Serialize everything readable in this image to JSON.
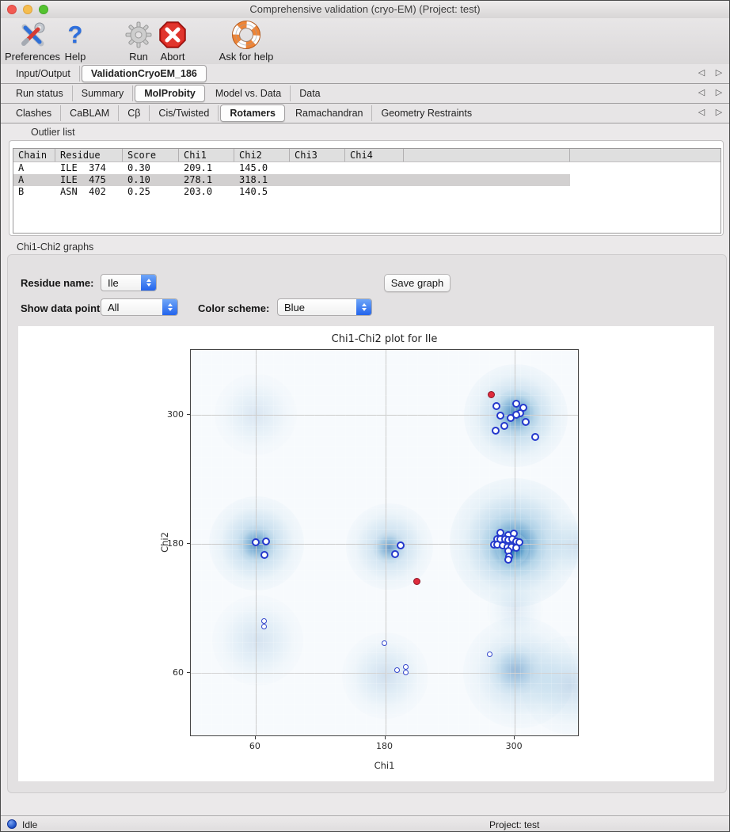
{
  "window": {
    "title": "Comprehensive validation (cryo-EM) (Project: test)"
  },
  "toolbar": {
    "items": [
      {
        "label": "Preferences",
        "icon": "preferences-tools-icon"
      },
      {
        "label": "Help",
        "icon": "help-question-icon"
      },
      {
        "label": "Run",
        "icon": "run-gear-icon"
      },
      {
        "label": "Abort",
        "icon": "abort-stop-icon"
      },
      {
        "label": "Ask for help",
        "icon": "lifebuoy-icon"
      }
    ]
  },
  "tab_rows": [
    {
      "tabs": [
        "Input/Output",
        "ValidationCryoEM_186"
      ],
      "active": 1
    },
    {
      "tabs": [
        "Run status",
        "Summary",
        "MolProbity",
        "Model vs. Data",
        "Data"
      ],
      "active": 2
    },
    {
      "tabs": [
        "Clashes",
        "CaBLAM",
        "Cβ",
        "Cis/Twisted",
        "Rotamers",
        "Ramachandran",
        "Geometry Restraints"
      ],
      "active": 4
    }
  ],
  "tab_scroll": {
    "left": "◁",
    "right": "▷"
  },
  "outlier_list": {
    "label": "Outlier list",
    "columns": [
      "Chain",
      "Residue",
      "Score",
      "Chi1",
      "Chi2",
      "Chi3",
      "Chi4"
    ],
    "rows": [
      {
        "cells": [
          "A",
          "ILE  374",
          "0.30",
          "209.1",
          "145.0",
          "",
          ""
        ],
        "selected": false
      },
      {
        "cells": [
          "A",
          "ILE  475",
          "0.10",
          "278.1",
          "318.1",
          "",
          ""
        ],
        "selected": true
      },
      {
        "cells": [
          "B",
          "ASN  402",
          "0.25",
          "203.0",
          "140.5",
          "",
          ""
        ],
        "selected": false
      }
    ]
  },
  "graph_section": {
    "label": "Chi1-Chi2 graphs",
    "residue_name_label": "Residue name:",
    "residue_name_value": "Ile",
    "show_points_label": "Show data points:",
    "show_points_value": "All",
    "color_scheme_label": "Color scheme:",
    "color_scheme_value": "Blue",
    "save_button": "Save graph"
  },
  "chart_data": {
    "type": "scatter",
    "title": "Chi1-Chi2 plot for Ile",
    "xlabel": "Chi1",
    "ylabel": "Chi2",
    "xlim": [
      0,
      360
    ],
    "ylim": [
      0,
      360
    ],
    "xticks": [
      60,
      180,
      300
    ],
    "yticks": [
      60,
      180,
      300
    ],
    "grid": true,
    "background_color": "#f7fafd",
    "series": [
      {
        "name": "favored",
        "marker": "open-circle-large",
        "color": "#2438cc",
        "points": [
          [
            283,
            308
          ],
          [
            301,
            310
          ],
          [
            308,
            306
          ],
          [
            305,
            301
          ],
          [
            301,
            300
          ],
          [
            287,
            299
          ],
          [
            296,
            297
          ],
          [
            310,
            293
          ],
          [
            290,
            289
          ],
          [
            282,
            285
          ],
          [
            319,
            279
          ],
          [
            287,
            190
          ],
          [
            294,
            188
          ],
          [
            299,
            189
          ],
          [
            284,
            184
          ],
          [
            287,
            184
          ],
          [
            291,
            184
          ],
          [
            294,
            183
          ],
          [
            298,
            184
          ],
          [
            301,
            182
          ],
          [
            304,
            181
          ],
          [
            281,
            179
          ],
          [
            284,
            179
          ],
          [
            289,
            178
          ],
          [
            293,
            177
          ],
          [
            297,
            177
          ],
          [
            301,
            176
          ],
          [
            294,
            173
          ],
          [
            295,
            168
          ],
          [
            294,
            165
          ],
          [
            60,
            181
          ],
          [
            70,
            182
          ],
          [
            68,
            169
          ],
          [
            194,
            178
          ],
          [
            189,
            170
          ]
        ]
      },
      {
        "name": "allowed",
        "marker": "open-circle-small",
        "color": "#3346cc",
        "points": [
          [
            68,
            108
          ],
          [
            68,
            103
          ],
          [
            179,
            87
          ],
          [
            191,
            62
          ],
          [
            199,
            65
          ],
          [
            199,
            60
          ],
          [
            277,
            77
          ]
        ]
      },
      {
        "name": "outliers",
        "marker": "filled-circle",
        "color": "#df2b3c",
        "stroke": "#8c1626",
        "points": [
          [
            278.1,
            318.1
          ],
          [
            209.1,
            145.0
          ]
        ]
      }
    ],
    "density_blobs": [
      {
        "x": 300,
        "y": 181,
        "r": 60,
        "i": 0.5
      },
      {
        "x": 299,
        "y": 179,
        "r": 30,
        "i": 0.85
      },
      {
        "x": 298,
        "y": 175,
        "r": 15,
        "i": 1.0
      },
      {
        "x": 301,
        "y": 299,
        "r": 48,
        "i": 0.42
      },
      {
        "x": 301,
        "y": 301,
        "r": 22,
        "i": 0.75
      },
      {
        "x": 61,
        "y": 180,
        "r": 44,
        "i": 0.38
      },
      {
        "x": 61,
        "y": 179,
        "r": 18,
        "i": 0.65
      },
      {
        "x": 184,
        "y": 177,
        "r": 40,
        "i": 0.32
      },
      {
        "x": 184,
        "y": 176,
        "r": 15,
        "i": 0.55
      },
      {
        "x": 304,
        "y": 60,
        "r": 52,
        "i": 0.28
      },
      {
        "x": 300,
        "y": 62,
        "r": 24,
        "i": 0.3
      },
      {
        "x": 352,
        "y": 48,
        "r": 46,
        "i": 0.22
      },
      {
        "x": 180,
        "y": 57,
        "r": 40,
        "i": 0.2
      },
      {
        "x": 62,
        "y": 90,
        "r": 42,
        "i": 0.18
      },
      {
        "x": 60,
        "y": 300,
        "r": 38,
        "i": 0.15
      },
      {
        "x": 357,
        "y": 178,
        "r": 30,
        "i": 0.17
      },
      {
        "x": 300,
        "y": 118,
        "r": 26,
        "i": 0.13
      }
    ]
  },
  "statusbar": {
    "status": "Idle",
    "project": "Project: test"
  }
}
